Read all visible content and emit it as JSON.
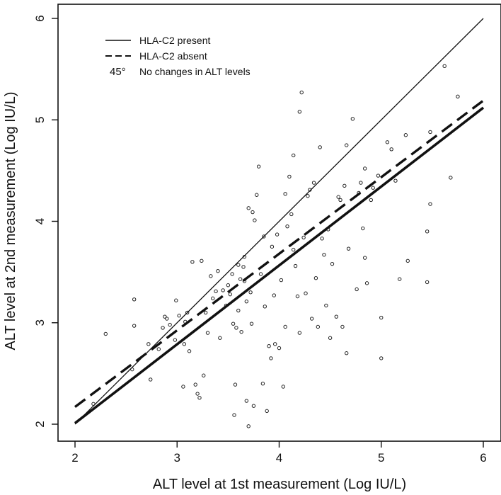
{
  "chart_data": {
    "type": "scatter",
    "xlabel": "ALT level at 1st measurement (Log IU/L)",
    "ylabel": "ALT level at 2nd measurement (Log IU/L)",
    "xlim": [
      2,
      6
    ],
    "ylim": [
      2,
      6
    ],
    "x_ticks": [
      2,
      3,
      4,
      5,
      6
    ],
    "y_ticks": [
      2,
      3,
      4,
      5,
      6
    ],
    "grid": false,
    "legend_position": "top-left",
    "legend": [
      {
        "symbol": "",
        "label": "HLA-C2 present",
        "style": "solid"
      },
      {
        "symbol": "",
        "label": "HLA-C2 absent",
        "style": "dashed"
      },
      {
        "symbol": "45°",
        "label": "No changes in ALT levels",
        "style": "text"
      }
    ],
    "lines": [
      {
        "name": "No changes in ALT levels",
        "x": [
          2,
          6
        ],
        "y": [
          2,
          6
        ],
        "style": "thin"
      },
      {
        "name": "HLA-C2 present",
        "x": [
          2,
          6
        ],
        "y": [
          2.01,
          5.12
        ],
        "style": "thick"
      },
      {
        "name": "HLA-C2 absent",
        "x": [
          2,
          6
        ],
        "y": [
          2.17,
          5.19
        ],
        "style": "dashed"
      }
    ],
    "points": [
      [
        2.18,
        2.2
      ],
      [
        2.3,
        2.89
      ],
      [
        2.56,
        2.54
      ],
      [
        2.58,
        2.97
      ],
      [
        2.58,
        3.23
      ],
      [
        2.72,
        2.79
      ],
      [
        2.74,
        2.44
      ],
      [
        2.82,
        2.74
      ],
      [
        2.86,
        2.95
      ],
      [
        2.88,
        3.06
      ],
      [
        2.9,
        3.04
      ],
      [
        2.93,
        2.98
      ],
      [
        2.98,
        2.83
      ],
      [
        2.99,
        3.22
      ],
      [
        3.02,
        3.07
      ],
      [
        3.06,
        2.37
      ],
      [
        3.07,
        2.79
      ],
      [
        3.08,
        3.01
      ],
      [
        3.1,
        3.1
      ],
      [
        3.12,
        2.72
      ],
      [
        3.15,
        3.6
      ],
      [
        3.18,
        2.39
      ],
      [
        3.2,
        2.3
      ],
      [
        3.22,
        2.26
      ],
      [
        3.24,
        3.61
      ],
      [
        3.26,
        2.48
      ],
      [
        3.28,
        3.1
      ],
      [
        3.3,
        2.9
      ],
      [
        3.33,
        3.46
      ],
      [
        3.35,
        3.24
      ],
      [
        3.38,
        3.31
      ],
      [
        3.4,
        3.51
      ],
      [
        3.42,
        2.85
      ],
      [
        3.45,
        3.32
      ],
      [
        3.48,
        3.17
      ],
      [
        3.5,
        3.37
      ],
      [
        3.52,
        3.28
      ],
      [
        3.54,
        3.48
      ],
      [
        3.55,
        2.99
      ],
      [
        3.56,
        2.09
      ],
      [
        3.57,
        2.39
      ],
      [
        3.58,
        2.95
      ],
      [
        3.6,
        3.57
      ],
      [
        3.6,
        3.12
      ],
      [
        3.62,
        3.43
      ],
      [
        3.63,
        2.91
      ],
      [
        3.65,
        3.55
      ],
      [
        3.66,
        3.65
      ],
      [
        3.66,
        3.41
      ],
      [
        3.68,
        3.21
      ],
      [
        3.68,
        2.23
      ],
      [
        3.7,
        1.98
      ],
      [
        3.7,
        4.13
      ],
      [
        3.72,
        3.3
      ],
      [
        3.73,
        2.99
      ],
      [
        3.74,
        4.09
      ],
      [
        3.75,
        2.18
      ],
      [
        3.76,
        4.01
      ],
      [
        3.78,
        4.26
      ],
      [
        3.8,
        4.54
      ],
      [
        3.82,
        3.48
      ],
      [
        3.84,
        2.4
      ],
      [
        3.85,
        3.85
      ],
      [
        3.86,
        3.16
      ],
      [
        3.88,
        2.13
      ],
      [
        3.9,
        2.77
      ],
      [
        3.92,
        2.65
      ],
      [
        3.93,
        3.75
      ],
      [
        3.95,
        3.27
      ],
      [
        3.96,
        2.79
      ],
      [
        3.98,
        3.87
      ],
      [
        4.0,
        2.75
      ],
      [
        4.02,
        3.42
      ],
      [
        4.04,
        2.37
      ],
      [
        4.06,
        2.96
      ],
      [
        4.06,
        4.27
      ],
      [
        4.08,
        3.95
      ],
      [
        4.1,
        4.44
      ],
      [
        4.12,
        4.07
      ],
      [
        4.14,
        3.72
      ],
      [
        4.14,
        4.65
      ],
      [
        4.16,
        3.56
      ],
      [
        4.18,
        3.26
      ],
      [
        4.2,
        2.9
      ],
      [
        4.2,
        5.08
      ],
      [
        4.22,
        5.27
      ],
      [
        4.24,
        3.84
      ],
      [
        4.26,
        3.29
      ],
      [
        4.28,
        4.25
      ],
      [
        4.3,
        4.31
      ],
      [
        4.32,
        3.04
      ],
      [
        4.34,
        4.38
      ],
      [
        4.36,
        3.44
      ],
      [
        4.38,
        2.96
      ],
      [
        4.4,
        4.73
      ],
      [
        4.42,
        3.83
      ],
      [
        4.44,
        3.67
      ],
      [
        4.46,
        3.17
      ],
      [
        4.48,
        3.92
      ],
      [
        4.5,
        2.85
      ],
      [
        4.52,
        3.58
      ],
      [
        4.56,
        3.06
      ],
      [
        4.58,
        4.24
      ],
      [
        4.6,
        4.21
      ],
      [
        4.62,
        2.96
      ],
      [
        4.64,
        4.35
      ],
      [
        4.66,
        4.75
      ],
      [
        4.66,
        2.7
      ],
      [
        4.68,
        3.73
      ],
      [
        4.72,
        5.01
      ],
      [
        4.76,
        3.33
      ],
      [
        4.78,
        4.28
      ],
      [
        4.8,
        4.38
      ],
      [
        4.82,
        3.93
      ],
      [
        4.84,
        4.52
      ],
      [
        4.84,
        3.64
      ],
      [
        4.86,
        3.39
      ],
      [
        4.9,
        4.21
      ],
      [
        4.92,
        4.33
      ],
      [
        4.97,
        4.45
      ],
      [
        5.0,
        3.05
      ],
      [
        5.0,
        2.65
      ],
      [
        5.06,
        4.78
      ],
      [
        5.1,
        4.71
      ],
      [
        5.14,
        4.4
      ],
      [
        5.18,
        3.43
      ],
      [
        5.24,
        4.85
      ],
      [
        5.26,
        3.61
      ],
      [
        5.45,
        3.4
      ],
      [
        5.45,
        3.9
      ],
      [
        5.48,
        4.17
      ],
      [
        5.48,
        4.88
      ],
      [
        5.62,
        5.53
      ],
      [
        5.68,
        4.43
      ],
      [
        5.75,
        5.23
      ]
    ]
  }
}
